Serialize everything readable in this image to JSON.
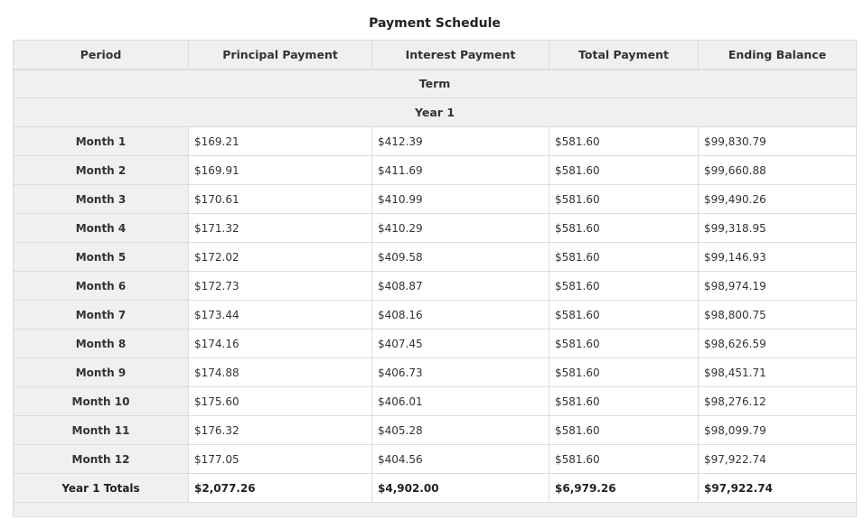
{
  "title": "Payment Schedule",
  "columns": [
    "Period",
    "Principal Payment",
    "Interest Payment",
    "Total Payment",
    "Ending Balance"
  ],
  "group_label": "Term",
  "subgroup_label": "Year 1",
  "rows": [
    [
      "Month 1",
      "$169.21",
      "$412.39",
      "$581.60",
      "$99,830.79"
    ],
    [
      "Month 2",
      "$169.91",
      "$411.69",
      "$581.60",
      "$99,660.88"
    ],
    [
      "Month 3",
      "$170.61",
      "$410.99",
      "$581.60",
      "$99,490.26"
    ],
    [
      "Month 4",
      "$171.32",
      "$410.29",
      "$581.60",
      "$99,318.95"
    ],
    [
      "Month 5",
      "$172.02",
      "$409.58",
      "$581.60",
      "$99,146.93"
    ],
    [
      "Month 6",
      "$172.73",
      "$408.87",
      "$581.60",
      "$98,974.19"
    ],
    [
      "Month 7",
      "$173.44",
      "$408.16",
      "$581.60",
      "$98,800.75"
    ],
    [
      "Month 8",
      "$174.16",
      "$407.45",
      "$581.60",
      "$98,626.59"
    ],
    [
      "Month 9",
      "$174.88",
      "$406.73",
      "$581.60",
      "$98,451.71"
    ],
    [
      "Month 10",
      "$175.60",
      "$406.01",
      "$581.60",
      "$98,276.12"
    ],
    [
      "Month 11",
      "$176.32",
      "$405.28",
      "$581.60",
      "$98,099.79"
    ],
    [
      "Month 12",
      "$177.05",
      "$404.56",
      "$581.60",
      "$97,922.74"
    ]
  ],
  "totals": [
    "Year 1 Totals",
    "$2,077.26",
    "$4,902.00",
    "$6,979.26",
    "$97,922.74"
  ]
}
